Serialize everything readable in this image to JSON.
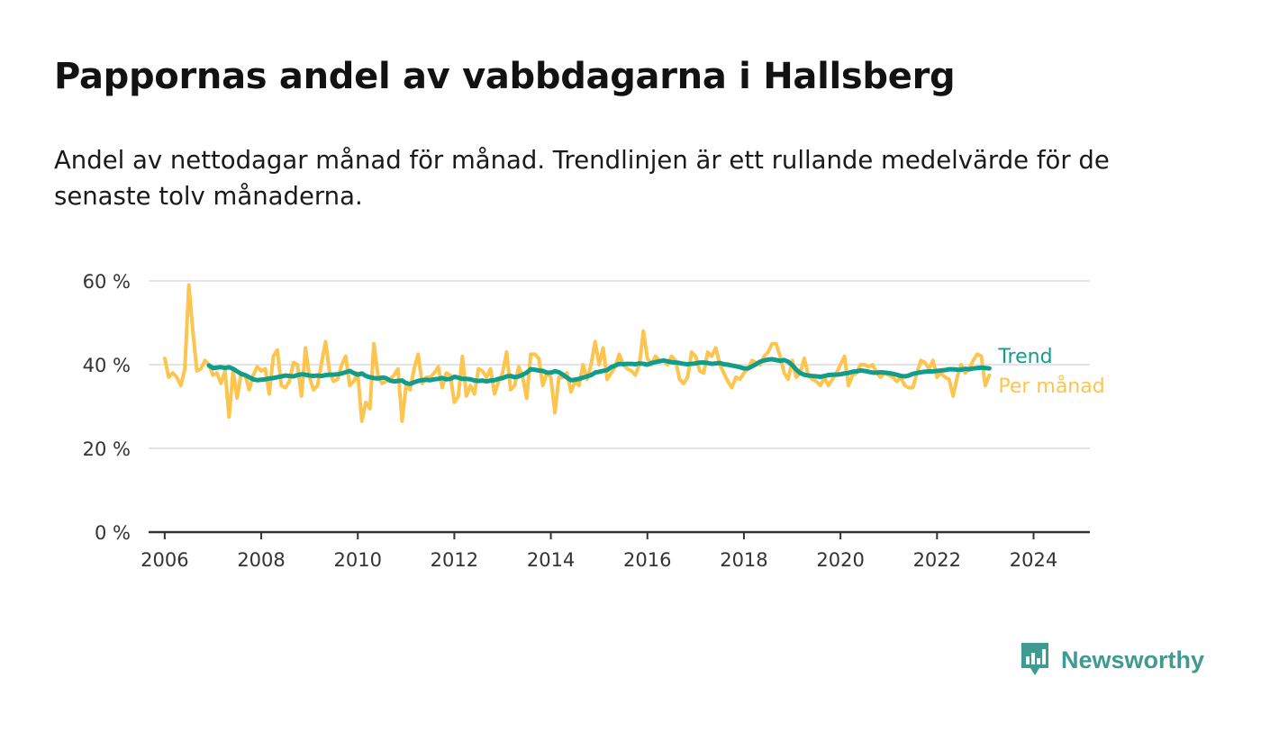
{
  "title": "Pappornas andel av vabbdagarna i Hallsberg",
  "subtitle": "Andel av nettodagar månad för månad. Trendlinjen är ett rullande medelvärde för de senaste tolv månaderna.",
  "brand": {
    "name": "Newsworthy",
    "color": "#3f9a92"
  },
  "chart_data": {
    "type": "line",
    "title": "Pappornas andel av vabbdagarna i Hallsberg",
    "subtitle": "Andel av nettodagar månad för månad. Trendlinjen är ett rullande medelvärde för de senaste tolv månaderna.",
    "x_range": [
      "2005-09",
      "2025-03"
    ],
    "ylim": [
      0,
      60
    ],
    "y_ticks": [
      0,
      20,
      40,
      60
    ],
    "y_tick_labels": [
      "0 %",
      "20 %",
      "40 %",
      "60 %"
    ],
    "x_ticks": [
      "2006",
      "2008",
      "2010",
      "2012",
      "2014",
      "2016",
      "2018",
      "2020",
      "2022",
      "2024"
    ],
    "grid": true,
    "legend": "right, at line ends",
    "series": [
      {
        "name": "Per månad",
        "color": "#fdc44e",
        "start": "2006-01",
        "step": "month",
        "values": [
          41.5,
          37,
          38,
          37,
          35,
          39,
          59,
          48,
          38.5,
          39,
          41,
          40,
          37.5,
          38,
          35.5,
          38.5,
          27.5,
          38.5,
          32,
          38,
          37.5,
          34,
          37.5,
          39.5,
          38.5,
          39,
          33,
          42,
          43.5,
          35,
          34.5,
          36,
          40.5,
          40,
          32.5,
          44,
          37,
          34,
          35,
          40.5,
          45.5,
          38,
          36,
          36.5,
          40,
          42,
          35,
          36,
          38,
          26.5,
          31,
          29.5,
          45,
          37.5,
          35.5,
          36,
          36.5,
          37.5,
          39,
          26.5,
          35,
          34,
          39,
          42.5,
          35.5,
          37,
          37,
          38,
          39.5,
          34.5,
          38,
          37.5,
          31,
          32.5,
          42,
          32.5,
          35,
          33,
          39,
          38.5,
          37,
          39,
          33,
          36,
          38,
          43,
          34,
          35,
          39.5,
          37,
          32,
          42.5,
          42.5,
          41.5,
          35,
          38,
          37,
          28.5,
          37,
          37,
          38,
          33.5,
          36,
          35,
          40,
          36.5,
          40,
          45.5,
          40,
          44,
          36.5,
          38,
          39.5,
          42.5,
          40,
          39,
          38.5,
          37.5,
          40,
          48,
          41.5,
          40,
          42,
          41,
          41,
          40,
          42,
          41,
          36.5,
          35.5,
          37,
          43,
          42,
          38.5,
          38,
          43,
          42,
          44,
          40,
          38,
          36,
          34.5,
          37,
          36.5,
          38,
          39,
          41,
          40.5,
          40,
          42,
          43,
          45,
          45,
          42,
          38,
          36.5,
          41,
          37,
          38,
          41.5,
          37.5,
          36.5,
          36,
          35,
          37,
          35,
          36.5,
          38,
          40,
          42,
          35,
          37.5,
          38,
          40,
          40,
          39.5,
          40,
          38,
          37,
          38,
          37.5,
          37,
          36,
          37,
          35,
          34.5,
          34.5,
          38,
          41,
          40.5,
          39,
          41,
          37,
          38,
          37,
          36.5,
          32.5,
          37,
          40,
          38,
          39,
          41,
          42.5,
          42,
          35,
          37.5
        ]
      },
      {
        "name": "Trend",
        "color": "#129d8b",
        "start": "2006-12",
        "step": "month",
        "values": [
          39.8,
          39.2,
          39.3,
          39.4,
          39.2,
          39.4,
          39,
          38.4,
          37.8,
          37.5,
          37,
          36.5,
          36.3,
          36.4,
          36.5,
          36.7,
          36.8,
          37,
          37.2,
          37.4,
          37.3,
          37.2,
          37.5,
          37.7,
          37.6,
          37.4,
          37.3,
          37.4,
          37.3,
          37.5,
          37.6,
          37.6,
          37.7,
          37.9,
          38.2,
          38.5,
          38,
          37.6,
          37.9,
          37.3,
          37,
          36.8,
          36.7,
          36.9,
          36.8,
          36.2,
          36,
          36.1,
          36.2,
          35.6,
          35.4,
          35.8,
          36.1,
          36.3,
          36.4,
          36.3,
          36.5,
          36.6,
          36.8,
          36.5,
          36.6,
          37.1,
          36.9,
          36.6,
          36.6,
          36.5,
          36.2,
          36.1,
          36.2,
          36,
          36.2,
          36.3,
          36.6,
          36.8,
          37.2,
          37.3,
          37,
          37.2,
          37.6,
          38.1,
          38.9,
          38.8,
          38.6,
          38.5,
          38.1,
          38.1,
          38.4,
          38.2,
          37.6,
          36.9,
          36.3,
          36.4,
          36.6,
          36.9,
          37.2,
          37.5,
          38.1,
          38.3,
          38.5,
          38.7,
          39.4,
          39.8,
          40.2,
          40.1,
          40.2,
          40.2,
          40.1,
          40.3,
          40.2,
          40,
          40.4,
          40.6,
          40.8,
          41,
          40.8,
          40.6,
          40.5,
          40.4,
          40.2,
          40.1,
          40.2,
          40.3,
          40.5,
          40.5,
          40.4,
          40.2,
          40.3,
          40.4,
          40.1,
          40,
          39.8,
          39.6,
          39.4,
          39.1,
          39.1,
          39.6,
          40.1,
          40.7,
          41,
          41.2,
          41.3,
          41.1,
          40.9,
          41.1,
          40.7,
          39.9,
          38.8,
          38,
          37.6,
          37.4,
          37.3,
          37.2,
          37.1,
          37.3,
          37.5,
          37.6,
          37.6,
          37.7,
          37.9,
          38,
          38.3,
          38.4,
          38.6,
          38.5,
          38.3,
          38.1,
          38.1,
          38.2,
          38.1,
          38,
          37.8,
          37.6,
          37.3,
          37.2,
          37.4,
          37.8,
          38,
          38.2,
          38.3,
          38.4,
          38.4,
          38.5,
          38.6,
          38.7,
          38.9,
          38.9,
          38.8,
          38.8,
          39,
          38.9,
          39.1,
          39.2,
          39.3,
          39.2,
          39.1
        ]
      }
    ]
  }
}
